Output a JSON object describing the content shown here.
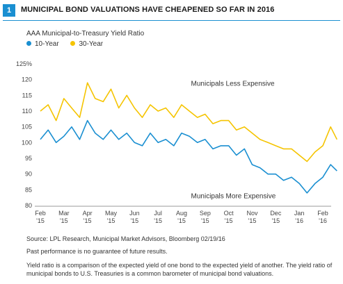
{
  "figure": {
    "number": "1",
    "title": "MUNICIPAL BOND VALUATIONS HAVE CHEAPENED SO FAR IN 2016"
  },
  "chart_data": {
    "type": "line",
    "title": "AAA Municipal-to-Treasury Yield Ratio",
    "ylabel": "",
    "xlabel": "",
    "ylim": [
      80,
      125
    ],
    "yticks": [
      "80",
      "85",
      "90",
      "95",
      "100",
      "105",
      "110",
      "115",
      "120",
      "125%"
    ],
    "xticks": [
      {
        "month": "Feb",
        "year": "'15"
      },
      {
        "month": "Mar",
        "year": "'15"
      },
      {
        "month": "Apr",
        "year": "'15"
      },
      {
        "month": "May",
        "year": "'15"
      },
      {
        "month": "Jun",
        "year": "'15"
      },
      {
        "month": "Jul",
        "year": "'15"
      },
      {
        "month": "Aug",
        "year": "'15"
      },
      {
        "month": "Sep",
        "year": "'15"
      },
      {
        "month": "Oct",
        "year": "'15"
      },
      {
        "month": "Nov",
        "year": "'15"
      },
      {
        "month": "Dec",
        "year": "'15"
      },
      {
        "month": "Jan",
        "year": "'16"
      },
      {
        "month": "Feb",
        "year": "'16"
      }
    ],
    "legend_position": "top-left",
    "grid": false,
    "annotations": [
      {
        "text": "Municipals Less Expensive",
        "x": 6.4,
        "y": 118
      },
      {
        "text": "Municipals More Expensive",
        "x": 6.4,
        "y": 82.3
      }
    ],
    "x": [
      0.0,
      0.33,
      0.67,
      1.0,
      1.33,
      1.67,
      2.0,
      2.33,
      2.67,
      3.0,
      3.33,
      3.67,
      4.0,
      4.33,
      4.67,
      5.0,
      5.33,
      5.67,
      6.0,
      6.33,
      6.67,
      7.0,
      7.33,
      7.67,
      8.0,
      8.33,
      8.67,
      9.0,
      9.33,
      9.67,
      10.0,
      10.33,
      10.67,
      11.0,
      11.33,
      11.67,
      12.0,
      12.33,
      12.6
    ],
    "series": [
      {
        "name": "10-Year",
        "color": "#1a8fd1",
        "values": [
          101,
          104,
          100,
          102,
          105,
          101,
          107,
          103,
          101,
          104,
          101,
          103,
          100,
          99,
          103,
          100,
          101,
          99,
          103,
          102,
          100,
          101,
          98,
          99,
          99,
          96,
          98,
          93,
          92,
          90,
          90,
          88,
          89,
          87,
          84,
          87,
          89,
          93,
          91
        ]
      },
      {
        "name": "30-Year",
        "color": "#f5c400",
        "values": [
          110,
          112,
          107,
          114,
          111,
          108,
          119,
          114,
          113,
          117,
          111,
          115,
          111,
          108,
          112,
          110,
          111,
          108,
          112,
          110,
          108,
          109,
          106,
          107,
          107,
          104,
          105,
          103,
          101,
          100,
          99,
          98,
          98,
          96,
          94,
          97,
          99,
          105,
          101
        ]
      }
    ]
  },
  "source": "Source: LPL Research, Municipal Market Advisors, Bloomberg  02/19/16",
  "note1": "Past performance is no guarantee of future results.",
  "note2": "Yield ratio is a comparison of the expected yield of one bond to the expected yield of another. The yield ratio of municipal bonds to U.S. Treasuries is a common barometer of municipal bond valuations."
}
